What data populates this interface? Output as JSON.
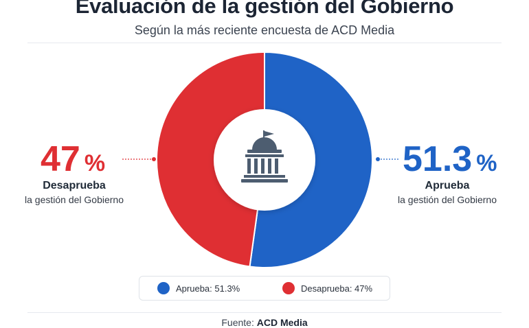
{
  "chart_data": {
    "type": "pie",
    "style": "donut",
    "title": "Evaluación de la gestión del Gobierno",
    "subtitle": "Según la más reciente encuesta de ACD Media",
    "categories": [
      "Aprueba",
      "Desaprueba"
    ],
    "values": [
      51.3,
      47
    ],
    "colors": [
      "#1f63c6",
      "#df2f33"
    ],
    "center_icon": "government-building-icon",
    "annotations": {
      "left": {
        "value": "47",
        "sign": "%",
        "label": "Desaprueba",
        "sublabel": "la gestión del Gobierno"
      },
      "right": {
        "value": "51.3",
        "sign": "%",
        "label": "Aprueba",
        "sublabel": "la gestión del Gobierno"
      }
    },
    "legend": [
      {
        "label": "Aprueba: 51.3%",
        "color": "#1f63c6"
      },
      {
        "label": "Desaprueba: 47%",
        "color": "#df2f33"
      }
    ],
    "legend_position": "bottom-center",
    "source": {
      "prefix": "Fuente:",
      "name": "ACD Media"
    }
  }
}
